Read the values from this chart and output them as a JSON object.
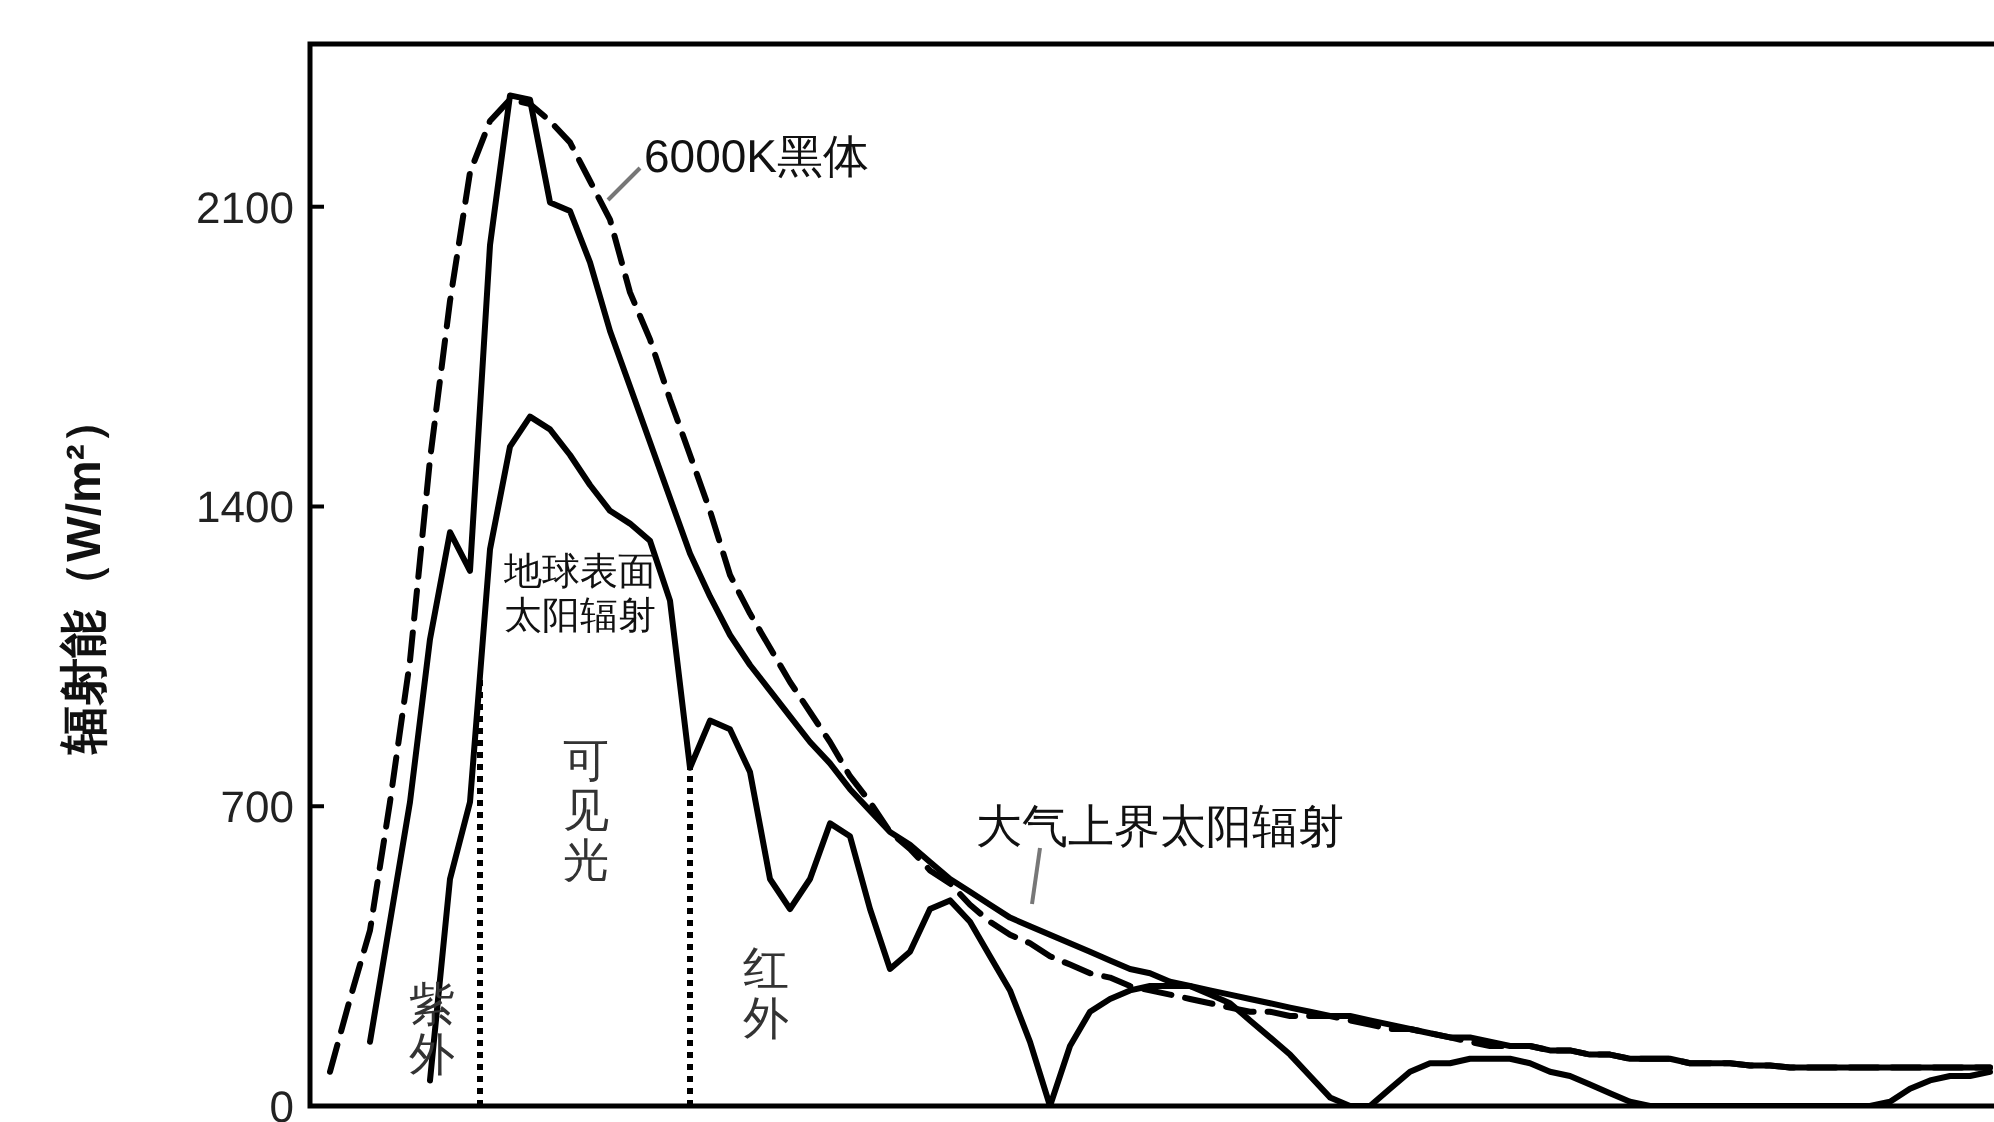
{
  "chart_data": {
    "type": "line",
    "ylabel": "辐射能（W/m²）",
    "categories": [
      null,
      null,
      null,
      null,
      null,
      null,
      null,
      null,
      null,
      null,
      null,
      null,
      null,
      null,
      null,
      null,
      null,
      null,
      null,
      null,
      null,
      null,
      null,
      null,
      null,
      null,
      null,
      null,
      null,
      null,
      null,
      null,
      null,
      null,
      null,
      null,
      null,
      null,
      null,
      null,
      null,
      null,
      null,
      null,
      null,
      null,
      null,
      null,
      null,
      null,
      null,
      null,
      null,
      null,
      null,
      null,
      null,
      null,
      null,
      null,
      null,
      null,
      null,
      null,
      null,
      null,
      null,
      null,
      null,
      null,
      null,
      null,
      null,
      null,
      null,
      null,
      null,
      null,
      null,
      null,
      null,
      null,
      null,
      null,
      null
    ],
    "ylim": [
      0,
      2480
    ],
    "yticks": [
      0,
      700,
      1400,
      2100
    ],
    "legend": false,
    "grid": false,
    "series": [
      {
        "name": "6000K黑体",
        "color": "#000000",
        "line_style": "dashed",
        "values": [
          null,
          80,
          250,
          410,
          710,
          1040,
          1510,
          1880,
          2180,
          2300,
          2350,
          2340,
          2300,
          2250,
          2160,
          2070,
          1900,
          1790,
          1650,
          1520,
          1390,
          1240,
          1150,
          1070,
          990,
          920,
          850,
          770,
          710,
          640,
          600,
          550,
          520,
          470,
          430,
          400,
          380,
          350,
          330,
          310,
          300,
          280,
          270,
          260,
          250,
          240,
          230,
          220,
          220,
          210,
          210,
          210,
          200,
          190,
          180,
          180,
          170,
          160,
          150,
          140,
          140,
          140,
          130,
          130,
          120,
          120,
          110,
          110,
          110,
          100,
          100,
          100,
          95,
          95,
          90,
          90,
          90,
          90,
          90,
          90,
          90,
          90,
          90,
          90,
          90
        ]
      },
      {
        "name": "大气上界太阳辐射",
        "color": "#000000",
        "line_style": "solid",
        "values": [
          null,
          null,
          null,
          150,
          430,
          710,
          1090,
          1340,
          1250,
          2010,
          2360,
          2350,
          2110,
          2090,
          1970,
          1810,
          1680,
          1550,
          1420,
          1290,
          1190,
          1100,
          1030,
          970,
          910,
          850,
          800,
          740,
          690,
          640,
          610,
          570,
          530,
          500,
          470,
          440,
          420,
          400,
          380,
          360,
          340,
          320,
          310,
          290,
          280,
          270,
          260,
          250,
          240,
          230,
          220,
          210,
          210,
          200,
          190,
          180,
          170,
          160,
          160,
          150,
          140,
          140,
          130,
          130,
          120,
          120,
          110,
          110,
          110,
          100,
          100,
          100,
          95,
          95,
          90,
          90,
          90,
          90,
          90,
          90,
          90,
          90,
          90,
          90,
          90
        ]
      },
      {
        "name": "地球表面太阳辐射",
        "color": "#000000",
        "line_style": "solid",
        "values": [
          null,
          null,
          null,
          null,
          null,
          null,
          60,
          530,
          710,
          1300,
          1540,
          1610,
          1580,
          1520,
          1450,
          1390,
          1360,
          1320,
          1180,
          790,
          900,
          880,
          780,
          530,
          460,
          530,
          660,
          630,
          460,
          320,
          360,
          460,
          480,
          430,
          350,
          270,
          150,
          0,
          140,
          220,
          250,
          270,
          280,
          280,
          280,
          260,
          240,
          200,
          160,
          120,
          70,
          20,
          0,
          0,
          40,
          80,
          100,
          100,
          110,
          110,
          110,
          100,
          80,
          70,
          50,
          30,
          10,
          0,
          0,
          0,
          0,
          0,
          0,
          0,
          0,
          0,
          0,
          0,
          0,
          10,
          40,
          60,
          70,
          70,
          80
        ]
      }
    ],
    "annotations": [
      "紫外",
      "可见光",
      "红外"
    ]
  }
}
